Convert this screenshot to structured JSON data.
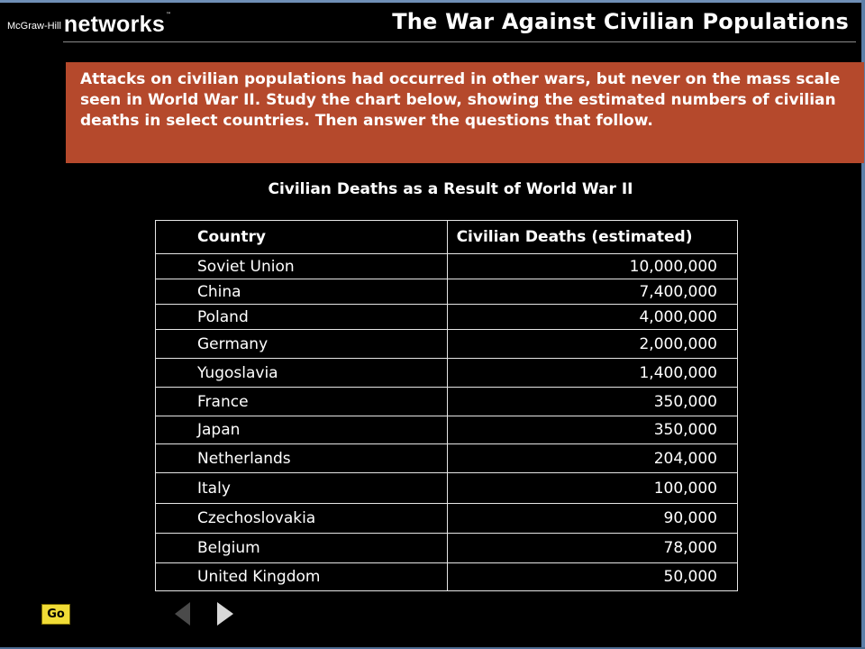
{
  "header": {
    "brand_small": "McGraw-Hill",
    "brand_large": "networks",
    "trademark": "™",
    "title": "The War Against Civilian Populations"
  },
  "intro": {
    "text": "Attacks on civilian populations had occurred in other wars, but never on the mass scale seen in World War II. Study the chart below, showing the estimated numbers of civilian deaths in select countries. Then answer the questions that follow."
  },
  "table": {
    "caption": "Civilian Deaths as a Result of World War II",
    "headers": [
      "Country",
      "Civilian Deaths (estimated)"
    ],
    "rows": [
      {
        "country": "Soviet Union",
        "deaths": "10,000,000"
      },
      {
        "country": "China",
        "deaths": "7,400,000"
      },
      {
        "country": "Poland",
        "deaths": "4,000,000"
      },
      {
        "country": "Germany",
        "deaths": "2,000,000"
      },
      {
        "country": "Yugoslavia",
        "deaths": "1,400,000"
      },
      {
        "country": "France",
        "deaths": "350,000"
      },
      {
        "country": "Japan",
        "deaths": "350,000"
      },
      {
        "country": "Netherlands",
        "deaths": "204,000"
      },
      {
        "country": "Italy",
        "deaths": "100,000"
      },
      {
        "country": "Czechoslovakia",
        "deaths": "90,000"
      },
      {
        "country": "Belgium",
        "deaths": "78,000"
      },
      {
        "country": "United Kingdom",
        "deaths": "50,000"
      }
    ]
  },
  "nav": {
    "go_label": "Go",
    "prev_icon": "triangle-left-icon",
    "next_icon": "triangle-right-icon",
    "prev_color": "#4a4a4a",
    "next_color": "#d8d8d8"
  },
  "colors": {
    "intro_background": "#b5492c",
    "go_button": "#f1dc36",
    "frame": "#5d7fa8"
  }
}
